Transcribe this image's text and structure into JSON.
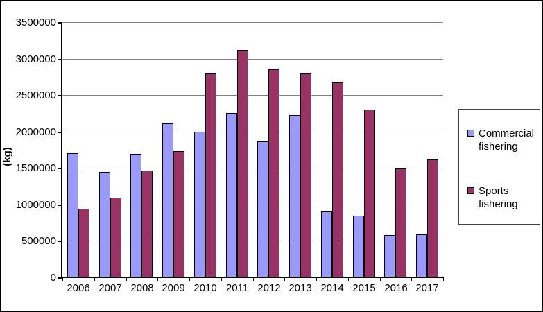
{
  "chart_data": {
    "type": "bar",
    "title": "",
    "xlabel": "",
    "ylabel": "(kg)",
    "categories": [
      "2006",
      "2007",
      "2008",
      "2009",
      "2010",
      "2011",
      "2012",
      "2013",
      "2014",
      "2015",
      "2016",
      "2017"
    ],
    "series": [
      {
        "name": "Commercial fishering",
        "color": "#9999FF",
        "values": [
          1700000,
          1450000,
          1690000,
          2110000,
          2000000,
          2250000,
          1860000,
          2230000,
          900000,
          850000,
          580000,
          590000
        ]
      },
      {
        "name": "Sports fishering",
        "color": "#993366",
        "values": [
          940000,
          1090000,
          1460000,
          1730000,
          2800000,
          3120000,
          2850000,
          2800000,
          2680000,
          2300000,
          1490000,
          1620000
        ]
      }
    ],
    "ylim": [
      0,
      3500000
    ],
    "ytick_step": 500000,
    "yticks": [
      "0",
      "500000",
      "1000000",
      "1500000",
      "2000000",
      "2500000",
      "3000000",
      "3500000"
    ],
    "grid": true,
    "gridline_color": "#808080",
    "axis_color": "#000000",
    "bar_border_color": "#000000",
    "legend_position": "right",
    "legend_border_color": "#444444",
    "background_color": "#ffffff",
    "frame_border_color": "#000000"
  }
}
